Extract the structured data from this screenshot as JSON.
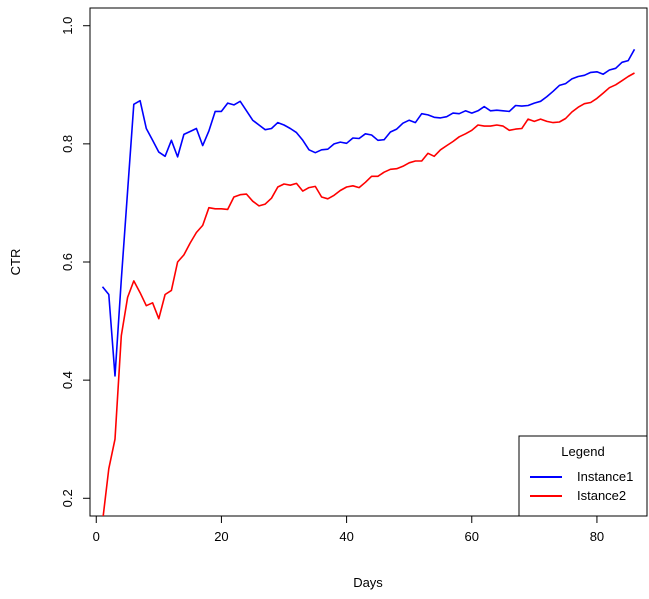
{
  "chart_data": {
    "type": "line",
    "title": "",
    "xlabel": "Days",
    "ylabel": "CTR",
    "xlim": [
      -1,
      88
    ],
    "ylim": [
      0.17,
      1.03
    ],
    "xticks": [
      0,
      20,
      40,
      60,
      80
    ],
    "xtick_labels": [
      "0",
      "20",
      "40",
      "60",
      "80"
    ],
    "yticks": [
      0.2,
      0.4,
      0.6,
      0.8,
      1.0
    ],
    "ytick_labels": [
      "0.2",
      "0.4",
      "0.6",
      "0.8",
      "1.0"
    ],
    "grid": false,
    "legend": {
      "title": "Legend",
      "placement": "bottom-right",
      "entries": [
        "Instance1",
        "Istance2"
      ]
    },
    "series": [
      {
        "name": "Instance1",
        "color": "#0000ff",
        "x": [
          1,
          2,
          3,
          4,
          5,
          6,
          7,
          8,
          9,
          10,
          11,
          12,
          13,
          14,
          15,
          16,
          17,
          18,
          19,
          20,
          21,
          22,
          23,
          24,
          25,
          26,
          27,
          28,
          29,
          30,
          31,
          32,
          33,
          34,
          35,
          36,
          37,
          38,
          39,
          40,
          41,
          42,
          43,
          44,
          45,
          46,
          47,
          48,
          49,
          50,
          51,
          52,
          53,
          54,
          55,
          56,
          57,
          58,
          59,
          60,
          61,
          62,
          63,
          64,
          65,
          66,
          67,
          68,
          69,
          70,
          71,
          72,
          73,
          74,
          75,
          76,
          77,
          78,
          79,
          80,
          81,
          82,
          83,
          84,
          85,
          86
        ],
        "y": [
          0.558,
          0.545,
          0.407,
          0.57,
          0.72,
          0.867,
          0.873,
          0.826,
          0.806,
          0.786,
          0.779,
          0.806,
          0.778,
          0.816,
          0.821,
          0.826,
          0.797,
          0.822,
          0.855,
          0.855,
          0.869,
          0.866,
          0.872,
          0.856,
          0.84,
          0.832,
          0.824,
          0.826,
          0.836,
          0.832,
          0.826,
          0.819,
          0.806,
          0.79,
          0.785,
          0.79,
          0.791,
          0.8,
          0.803,
          0.801,
          0.81,
          0.809,
          0.817,
          0.815,
          0.806,
          0.807,
          0.82,
          0.825,
          0.835,
          0.84,
          0.836,
          0.851,
          0.849,
          0.845,
          0.844,
          0.846,
          0.852,
          0.851,
          0.856,
          0.852,
          0.856,
          0.863,
          0.856,
          0.857,
          0.856,
          0.855,
          0.865,
          0.864,
          0.865,
          0.869,
          0.872,
          0.88,
          0.889,
          0.899,
          0.902,
          0.91,
          0.914,
          0.916,
          0.921,
          0.922,
          0.918,
          0.925,
          0.928,
          0.938,
          0.941,
          0.96
        ]
      },
      {
        "name": "Istance2",
        "color": "#ff0000",
        "x": [
          1,
          2,
          3,
          4,
          5,
          6,
          7,
          8,
          9,
          10,
          11,
          12,
          13,
          14,
          15,
          16,
          17,
          18,
          19,
          20,
          21,
          22,
          23,
          24,
          25,
          26,
          27,
          28,
          29,
          30,
          31,
          32,
          33,
          34,
          35,
          36,
          37,
          38,
          39,
          40,
          41,
          42,
          43,
          44,
          45,
          46,
          47,
          48,
          49,
          50,
          51,
          52,
          53,
          54,
          55,
          56,
          57,
          58,
          59,
          60,
          61,
          62,
          63,
          64,
          65,
          66,
          67,
          68,
          69,
          70,
          71,
          72,
          73,
          74,
          75,
          76,
          77,
          78,
          79,
          80,
          81,
          82,
          83,
          84,
          85,
          86
        ],
        "y": [
          0.16,
          0.25,
          0.3,
          0.475,
          0.54,
          0.568,
          0.548,
          0.526,
          0.531,
          0.504,
          0.545,
          0.552,
          0.6,
          0.612,
          0.632,
          0.65,
          0.662,
          0.692,
          0.69,
          0.69,
          0.689,
          0.71,
          0.714,
          0.715,
          0.703,
          0.695,
          0.698,
          0.708,
          0.727,
          0.732,
          0.73,
          0.733,
          0.72,
          0.726,
          0.728,
          0.71,
          0.707,
          0.713,
          0.721,
          0.727,
          0.729,
          0.726,
          0.735,
          0.745,
          0.745,
          0.752,
          0.757,
          0.758,
          0.762,
          0.768,
          0.771,
          0.771,
          0.784,
          0.779,
          0.79,
          0.797,
          0.804,
          0.812,
          0.817,
          0.823,
          0.832,
          0.83,
          0.83,
          0.832,
          0.83,
          0.823,
          0.825,
          0.826,
          0.842,
          0.838,
          0.842,
          0.838,
          0.836,
          0.837,
          0.843,
          0.854,
          0.862,
          0.868,
          0.87,
          0.877,
          0.886,
          0.895,
          0.9,
          0.907,
          0.914,
          0.92
        ]
      }
    ]
  }
}
